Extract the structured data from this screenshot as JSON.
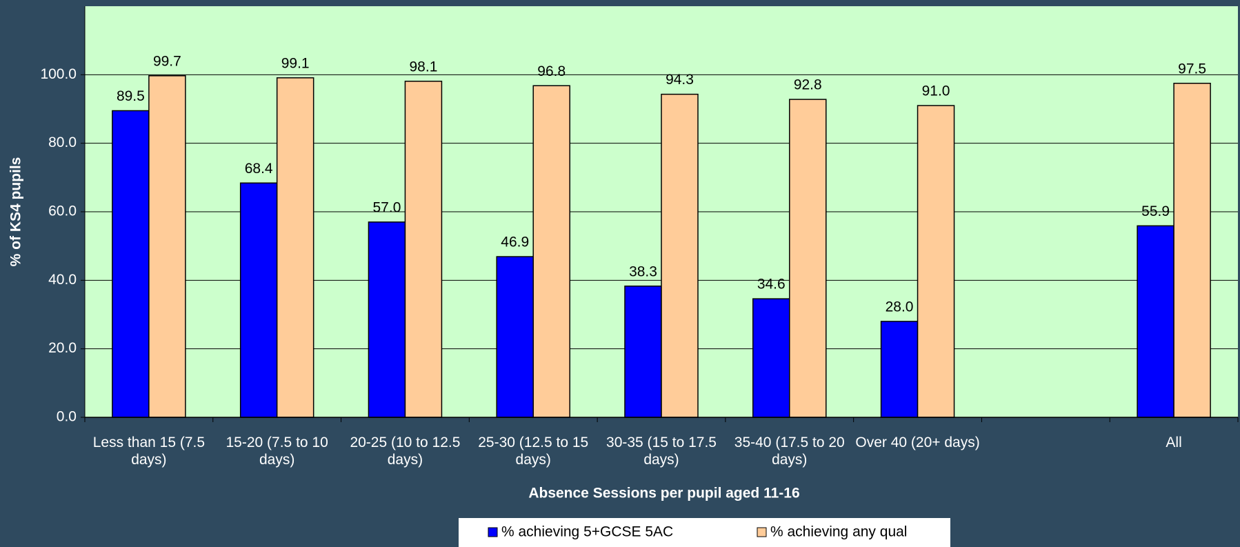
{
  "chart_data": {
    "type": "bar",
    "categories": [
      "Less than 15 (7.5 days)",
      "15-20 (7.5 to 10 days)",
      "20-25 (10 to 12.5 days)",
      "25-30 (12.5 to 15 days)",
      "30-35 (15 to 17.5 days)",
      "35-40 (17.5 to 20 days)",
      "Over 40 (20+ days)",
      null,
      "All"
    ],
    "series": [
      {
        "name": "% achieving 5+GCSE 5AC",
        "color": "#0000ff",
        "values": [
          89.5,
          68.4,
          57.0,
          46.9,
          38.3,
          34.6,
          28.0,
          null,
          55.9
        ],
        "value_labels": [
          "89.5",
          "68.4",
          "57.0",
          "46.9",
          "38.3",
          "34.6",
          "28.0",
          null,
          "55.9"
        ]
      },
      {
        "name": "% achieving any qual",
        "color": "#ffcc99",
        "values": [
          99.7,
          99.1,
          98.1,
          96.8,
          94.3,
          92.8,
          91.0,
          null,
          97.5
        ],
        "value_labels": [
          "99.7",
          "99.1",
          "98.1",
          "96.8",
          "94.3",
          "92.8",
          "91.0",
          null,
          "97.5"
        ]
      }
    ],
    "x_label": "Absence Sessions per pupil aged 11-16",
    "y_label": "% of KS4 pupils",
    "ylim": [
      0,
      120
    ],
    "yticks": [
      {
        "value": 0,
        "label": "0.0"
      },
      {
        "value": 20,
        "label": "20.0"
      },
      {
        "value": 40,
        "label": "40.0"
      },
      {
        "value": 60,
        "label": "60.0"
      },
      {
        "value": 80,
        "label": "80.0"
      },
      {
        "value": 100,
        "label": "100.0"
      }
    ],
    "grid": true,
    "legend": "bottom"
  }
}
